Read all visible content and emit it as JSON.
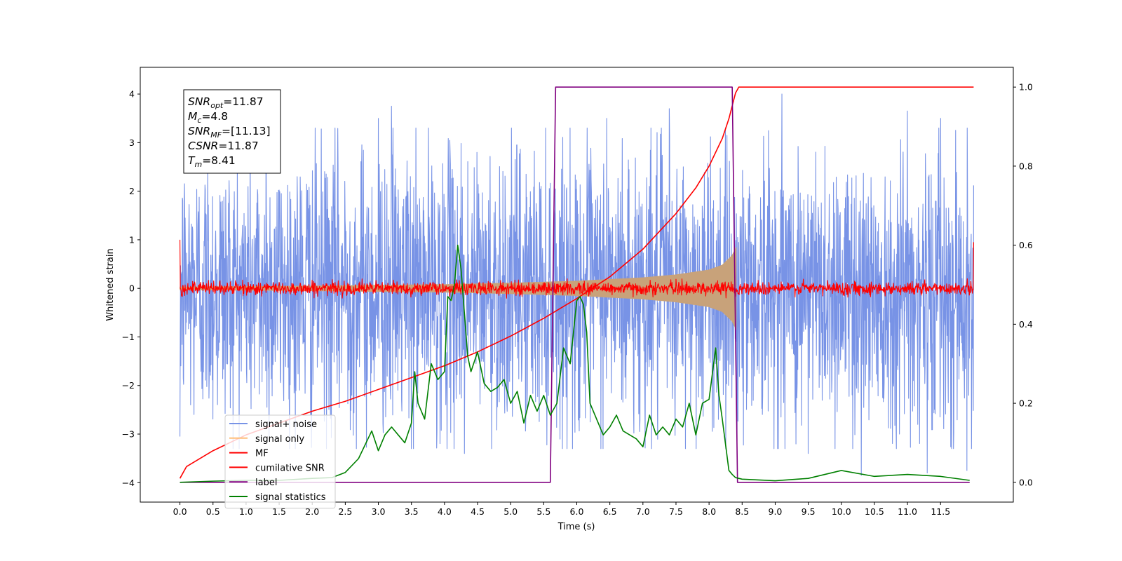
{
  "chart_data": {
    "type": "line",
    "title": "",
    "xlabel": "Time (s)",
    "ylabel": "Whitened strain",
    "y2label": "",
    "xlim": [
      -0.6,
      12.6
    ],
    "ylim": [
      -4.4,
      4.55
    ],
    "y2lim": [
      -0.05,
      1.05
    ],
    "x_ticks": [
      0.0,
      0.5,
      1.0,
      1.5,
      2.0,
      2.5,
      3.0,
      3.5,
      4.0,
      4.5,
      5.0,
      5.5,
      6.0,
      6.5,
      7.0,
      7.5,
      8.0,
      8.5,
      9.0,
      9.5,
      10.0,
      10.5,
      11.0,
      11.5
    ],
    "x_tick_labels": [
      "0.0",
      "0.5",
      "1.0",
      "1.5",
      "2.0",
      "2.5",
      "3.0",
      "3.5",
      "4.0",
      "4.5",
      "5.0",
      "5.5",
      "6.0",
      "6.5",
      "7.0",
      "7.5",
      "8.0",
      "8.5",
      "9.0",
      "9.5",
      "10.0",
      "10.5",
      "11.0",
      "11.5"
    ],
    "y_ticks": [
      4,
      3,
      2,
      1,
      0,
      -1,
      -2,
      -3,
      -4
    ],
    "y_tick_labels": [
      "4",
      "3",
      "2",
      "1",
      "0",
      "−1",
      "−2",
      "−3",
      "−4"
    ],
    "y2_ticks": [
      1.0,
      0.8,
      0.6,
      0.4,
      0.2,
      0.0
    ],
    "y2_tick_labels": [
      "1.0",
      "0.8",
      "0.6",
      "0.4",
      "0.2",
      "0.0"
    ],
    "grid": false,
    "legend_position": "lower-left",
    "annotation": {
      "lines": [
        {
          "base": "SNR",
          "sub": "opt",
          "value": "=11.87"
        },
        {
          "base": "M",
          "sub": "c",
          "value": "=4.8"
        },
        {
          "base": "SNR",
          "sub": "MF",
          "value": "=[11.13]"
        },
        {
          "base": "CSNR",
          "sub": "",
          "value": "=11.87"
        },
        {
          "base": "T",
          "sub": "m",
          "value": "=8.41"
        }
      ]
    },
    "series": [
      {
        "name": "signal+ noise",
        "color": "#7893e6",
        "axis": "left",
        "style": "noise",
        "x_range": [
          0.0,
          12.0
        ],
        "typical_envelope": 2.4,
        "peak_values": [
          [
            0.0,
            2.7
          ],
          [
            0.0,
            -3.05
          ],
          [
            1.3,
            3.6
          ],
          [
            3.0,
            3.5
          ],
          [
            3.2,
            3.75
          ],
          [
            6.45,
            3.5
          ],
          [
            7.4,
            3.7
          ],
          [
            9.1,
            4.0
          ],
          [
            9.5,
            -3.4
          ],
          [
            10.3,
            -3.85
          ],
          [
            11.0,
            3.65
          ],
          [
            11.3,
            -3.8
          ],
          [
            11.5,
            3.5
          ],
          [
            11.9,
            -3.75
          ],
          [
            3.5,
            -3.3
          ],
          [
            4.3,
            -3.4
          ]
        ]
      },
      {
        "name": "signal only",
        "color": "#c8a27a",
        "axis": "left",
        "style": "chirp",
        "x_range": [
          0.0,
          8.41
        ],
        "envelope_x": [
          0.0,
          2.0,
          4.0,
          5.0,
          6.0,
          7.0,
          7.5,
          8.0,
          8.2,
          8.35,
          8.41
        ],
        "envelope_y": [
          0.03,
          0.05,
          0.08,
          0.11,
          0.15,
          0.22,
          0.28,
          0.38,
          0.48,
          0.68,
          0.85
        ]
      },
      {
        "name": "MF",
        "color": "#ff0000",
        "axis": "left",
        "style": "noise",
        "x_range": [
          0.0,
          12.0
        ],
        "typical_envelope": 0.15,
        "edge_values": [
          [
            0.0,
            1.0
          ],
          [
            12.0,
            0.95
          ]
        ]
      },
      {
        "name": "cumilative SNR",
        "color": "#ff0000",
        "axis": "right",
        "style": "line",
        "x": [
          0.0,
          0.1,
          0.5,
          1.0,
          1.5,
          2.0,
          2.5,
          3.0,
          3.5,
          4.0,
          4.5,
          5.0,
          5.5,
          6.0,
          6.5,
          7.0,
          7.5,
          7.8,
          8.0,
          8.2,
          8.3,
          8.4,
          8.45,
          12.0
        ],
        "y": [
          0.01,
          0.04,
          0.08,
          0.12,
          0.15,
          0.18,
          0.205,
          0.235,
          0.265,
          0.295,
          0.33,
          0.37,
          0.415,
          0.465,
          0.52,
          0.59,
          0.68,
          0.745,
          0.8,
          0.87,
          0.92,
          0.985,
          1.0,
          1.0
        ]
      },
      {
        "name": "label",
        "color": "#800080",
        "axis": "right",
        "style": "line",
        "x": [
          0.0,
          5.6,
          5.68,
          8.35,
          8.43,
          11.94
        ],
        "y": [
          0.0,
          0.0,
          1.0,
          1.0,
          0.0,
          0.0
        ]
      },
      {
        "name": "signal statistics",
        "color": "#008000",
        "axis": "right",
        "style": "line",
        "x": [
          0.0,
          0.5,
          1.0,
          1.5,
          2.0,
          2.3,
          2.5,
          2.7,
          2.9,
          3.0,
          3.1,
          3.2,
          3.3,
          3.4,
          3.5,
          3.55,
          3.6,
          3.7,
          3.8,
          3.9,
          4.0,
          4.05,
          4.1,
          4.15,
          4.2,
          4.25,
          4.3,
          4.35,
          4.4,
          4.5,
          4.6,
          4.7,
          4.8,
          4.9,
          5.0,
          5.1,
          5.2,
          5.3,
          5.4,
          5.5,
          5.6,
          5.7,
          5.8,
          5.9,
          6.0,
          6.05,
          6.1,
          6.15,
          6.2,
          6.3,
          6.4,
          6.5,
          6.6,
          6.7,
          6.8,
          6.9,
          7.0,
          7.1,
          7.2,
          7.3,
          7.4,
          7.5,
          7.6,
          7.7,
          7.8,
          7.9,
          8.0,
          8.1,
          8.15,
          8.2,
          8.3,
          8.35,
          8.4,
          8.45,
          8.5,
          9.0,
          9.5,
          10.0,
          10.5,
          11.0,
          11.5,
          11.94
        ],
        "y": [
          0.0,
          0.003,
          0.005,
          0.005,
          0.01,
          0.012,
          0.025,
          0.06,
          0.13,
          0.08,
          0.12,
          0.14,
          0.12,
          0.1,
          0.15,
          0.28,
          0.2,
          0.16,
          0.3,
          0.26,
          0.28,
          0.47,
          0.46,
          0.5,
          0.6,
          0.54,
          0.43,
          0.32,
          0.28,
          0.33,
          0.25,
          0.23,
          0.24,
          0.26,
          0.2,
          0.23,
          0.15,
          0.22,
          0.18,
          0.22,
          0.17,
          0.2,
          0.34,
          0.3,
          0.46,
          0.47,
          0.45,
          0.38,
          0.2,
          0.16,
          0.12,
          0.14,
          0.17,
          0.13,
          0.12,
          0.11,
          0.09,
          0.17,
          0.12,
          0.14,
          0.12,
          0.16,
          0.14,
          0.2,
          0.12,
          0.2,
          0.21,
          0.34,
          0.22,
          0.16,
          0.03,
          0.02,
          0.012,
          0.01,
          0.008,
          0.004,
          0.01,
          0.03,
          0.015,
          0.02,
          0.015,
          0.005
        ]
      }
    ]
  }
}
